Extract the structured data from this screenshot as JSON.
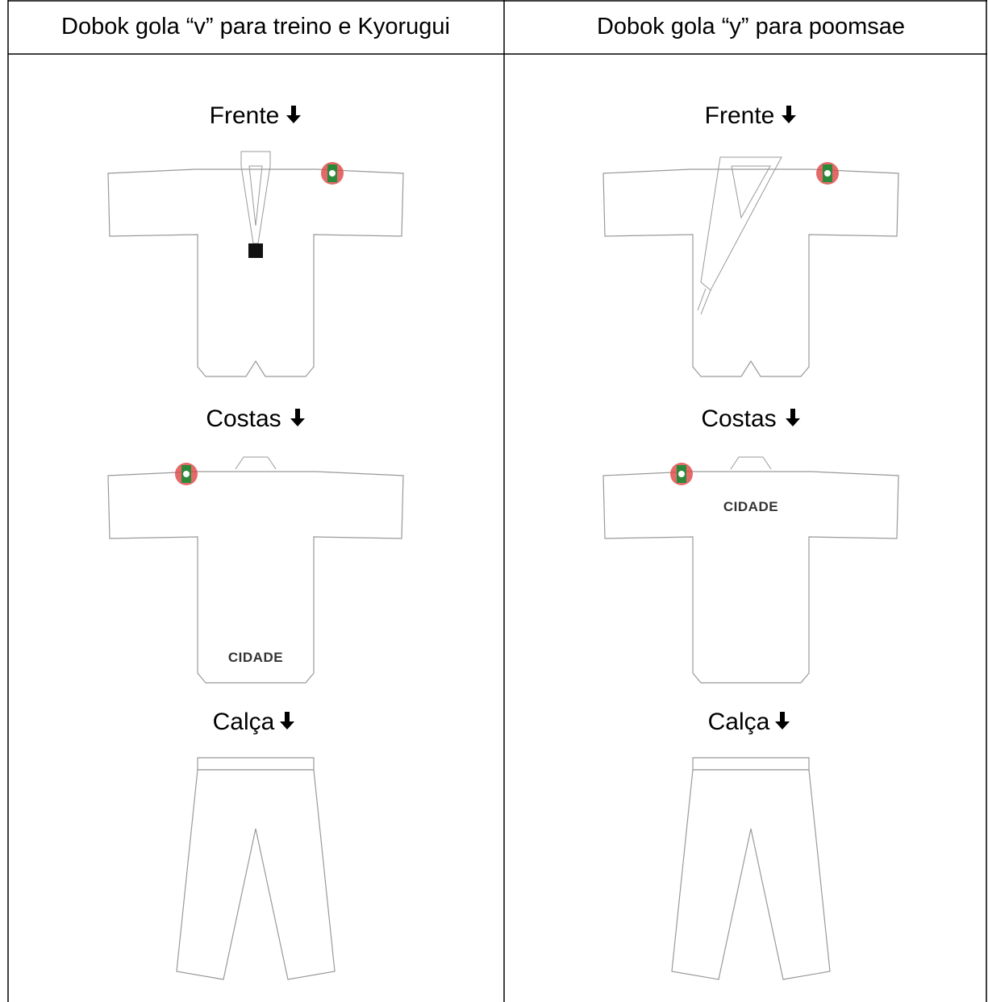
{
  "table": {
    "headers": [
      "Dobok gola “v” para treino e Kyorugui",
      "Dobok gola “y” para poomsae"
    ],
    "columns": [
      {
        "front": "Frente",
        "back": "Costas",
        "back_print": "CIDADE",
        "pants": "Calça"
      },
      {
        "front": "Frente",
        "back": "Costas",
        "back_print": "CIDADE",
        "pants": "Calça"
      }
    ]
  }
}
